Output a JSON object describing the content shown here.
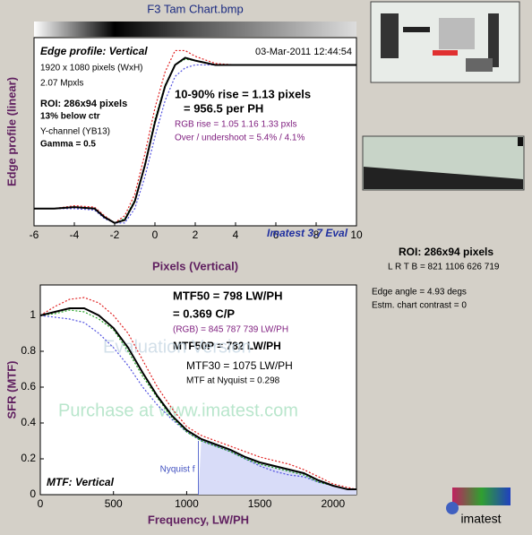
{
  "header": {
    "title": "F3 Tam Chart.bmp"
  },
  "chart_data": [
    {
      "type": "line",
      "xlabel": "Pixels (Vertical)",
      "ylabel": "Edge profile (linear)",
      "x": [
        -6,
        -5,
        -4,
        -3,
        -2.5,
        -2,
        -1.5,
        -1,
        -0.5,
        0,
        0.5,
        1,
        1.5,
        2,
        3,
        4,
        6,
        8,
        10
      ],
      "xlim": [
        -6,
        10
      ],
      "xticks": [
        -6,
        -4,
        -2,
        0,
        2,
        4,
        6,
        8,
        10
      ],
      "ylim": [
        -0.12,
        1.19
      ],
      "series": [
        {
          "color": "#e02020",
          "dash": true,
          "values": [
            0,
            0,
            0.02,
            0.01,
            -0.05,
            -0.1,
            -0.05,
            0.1,
            0.38,
            0.7,
            0.95,
            1.1,
            1.1,
            1.06,
            1.01,
            1.0,
            1.0,
            1.0,
            1.0
          ]
        },
        {
          "color": "#5050e0",
          "dash": true,
          "values": [
            0,
            0,
            0,
            -0.01,
            -0.07,
            -0.1,
            -0.1,
            0,
            0.22,
            0.5,
            0.75,
            0.92,
            0.98,
            1.0,
            1.0,
            1.0,
            1.0,
            1.0,
            1.0
          ]
        },
        {
          "color": "#20a020",
          "dash": true,
          "values": [
            0,
            0,
            0.01,
            0,
            -0.06,
            -0.1,
            -0.07,
            0.06,
            0.31,
            0.62,
            0.86,
            1.0,
            1.04,
            1.03,
            1.0,
            1.0,
            1.0,
            1.0,
            1.0
          ]
        },
        {
          "color": "#000000",
          "dash": false,
          "values": [
            0,
            0,
            0.01,
            0,
            -0.06,
            -0.1,
            -0.08,
            0.05,
            0.3,
            0.6,
            0.85,
            1.0,
            1.05,
            1.03,
            1.0,
            1.0,
            1.0,
            1.0,
            1.0
          ]
        }
      ],
      "annotations": [
        "Edge profile: Vertical",
        "03-Mar-2011 12:44:54",
        "1920 x 1080 pixels (WxH)",
        "2.07 Mpxls",
        "ROI:  286x94 pixels",
        "13% below ctr",
        "Y-channel  (YB13)",
        "Gamma = 0.5",
        "10-90% rise = 1.13 pixels",
        "= 956.5 per PH",
        "RGB rise = 1.05  1.16  1.33 pxls",
        "Over / undershoot = 5.4% / 4.1%",
        "Imatest 3.7 Eval"
      ]
    },
    {
      "type": "line",
      "xlabel": "Frequency, LW/PH",
      "ylabel": "SFR (MTF)",
      "x": [
        0,
        100,
        200,
        300,
        400,
        500,
        600,
        700,
        800,
        900,
        1000,
        1100,
        1200,
        1300,
        1400,
        1500,
        1600,
        1700,
        1800,
        1900,
        2000,
        2100,
        2160
      ],
      "xlim": [
        0,
        2160
      ],
      "xticks": [
        0,
        500,
        1000,
        1500,
        2000
      ],
      "ylim": [
        0,
        1.17
      ],
      "yticks": [
        0,
        0.2,
        0.4,
        0.6,
        0.8,
        1
      ],
      "nyquist": {
        "x": 1080,
        "label": "Nyquist f"
      },
      "series": [
        {
          "color": "#e02020",
          "dash": true,
          "values": [
            1.0,
            1.05,
            1.09,
            1.1,
            1.07,
            1.0,
            0.9,
            0.75,
            0.6,
            0.48,
            0.38,
            0.33,
            0.3,
            0.27,
            0.24,
            0.21,
            0.19,
            0.17,
            0.14,
            0.1,
            0.06,
            0.04,
            0.03
          ]
        },
        {
          "color": "#5050e0",
          "dash": true,
          "values": [
            1.0,
            0.99,
            0.98,
            0.96,
            0.9,
            0.82,
            0.72,
            0.6,
            0.5,
            0.42,
            0.35,
            0.3,
            0.27,
            0.24,
            0.2,
            0.16,
            0.13,
            0.11,
            0.1,
            0.07,
            0.05,
            0.03,
            0.03
          ]
        },
        {
          "color": "#20a020",
          "dash": true,
          "values": [
            1.0,
            1.01,
            1.03,
            1.02,
            0.98,
            0.92,
            0.8,
            0.66,
            0.54,
            0.43,
            0.35,
            0.3,
            0.27,
            0.24,
            0.2,
            0.17,
            0.15,
            0.13,
            0.11,
            0.07,
            0.05,
            0.03,
            0.03
          ]
        },
        {
          "color": "#000000",
          "dash": false,
          "values": [
            1.0,
            1.02,
            1.04,
            1.04,
            1.0,
            0.93,
            0.82,
            0.68,
            0.55,
            0.44,
            0.36,
            0.31,
            0.28,
            0.25,
            0.21,
            0.18,
            0.16,
            0.14,
            0.12,
            0.08,
            0.05,
            0.03,
            0.03
          ]
        }
      ],
      "annotations": [
        "MTF50 = 798 LW/PH",
        "= 0.369 C/P",
        "(RGB) = 845  787  739 LW/PH",
        "MTF50P = 782 LW/PH",
        "MTF30 = 1075 LW/PH",
        "MTF at Nyquist = 0.298",
        "MTF: Vertical",
        "Evaluation Version",
        "Purchase at www.imatest.com"
      ]
    }
  ],
  "side": {
    "roi": "ROI:  286x94 pixels",
    "lrtb": "L R  T B = 821 1106  626 719",
    "angle": "Edge angle = 4.93 degs",
    "contrast": "Estm. chart contrast = 0"
  },
  "logo": "imatest"
}
